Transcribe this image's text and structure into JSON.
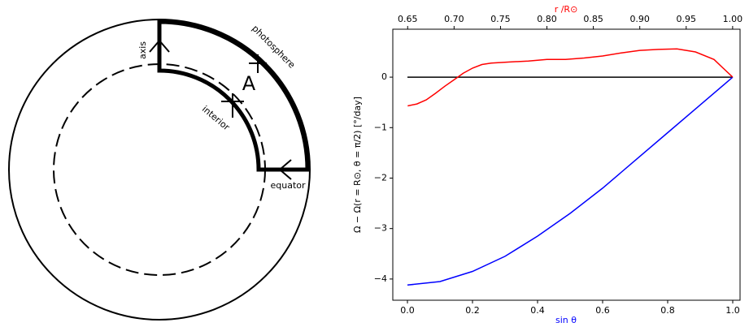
{
  "diagram": {
    "axis": "axis",
    "photosphere": "photosphere",
    "point": "A",
    "interior": "interior",
    "equator": "equator"
  },
  "chart_data": {
    "type": "line",
    "xlabel": "sin θ",
    "x2label": "r /R⊙",
    "ylabel": "Ω − Ω(r = R⊙, θ = π/2) [°/day]",
    "xlabel_color": "#0000ff",
    "x2label_color": "#ff0000",
    "xlim": [
      -0.045,
      1.0225
    ],
    "xticks": [
      {
        "value": 0,
        "label": "0.0"
      },
      {
        "value": 0.2,
        "label": "0.2"
      },
      {
        "value": 0.4,
        "label": "0.4"
      },
      {
        "value": 0.6,
        "label": "0.6"
      },
      {
        "value": 0.8,
        "label": "0.8"
      },
      {
        "value": 1,
        "label": "1.0"
      }
    ],
    "x2lim": [
      0.634,
      1.008
    ],
    "x2ticks": [
      {
        "value": 0.65,
        "label": "0.65"
      },
      {
        "value": 0.7,
        "label": "0.70"
      },
      {
        "value": 0.75,
        "label": "0.75"
      },
      {
        "value": 0.8,
        "label": "0.80"
      },
      {
        "value": 0.85,
        "label": "0.85"
      },
      {
        "value": 0.9,
        "label": "0.90"
      },
      {
        "value": 0.95,
        "label": "0.95"
      },
      {
        "value": 1,
        "label": "1.00"
      }
    ],
    "ylim": [
      -4.42,
      0.95
    ],
    "yticks": [
      {
        "value": -4,
        "label": "−4"
      },
      {
        "value": -3,
        "label": "−3"
      },
      {
        "value": -2,
        "label": "−2"
      },
      {
        "value": -1,
        "label": "−1"
      },
      0
    ],
    "series": [
      {
        "color": "#000000",
        "x": [
          0,
          1
        ],
        "values": [
          0,
          0
        ]
      },
      {
        "color": "#0000ff",
        "x": [
          0,
          0.1,
          0.2,
          0.3,
          0.4,
          0.5,
          0.6,
          0.7,
          0.8,
          0.9,
          1.0
        ],
        "values": [
          -4.12,
          -4.05,
          -3.85,
          -3.55,
          -3.15,
          -2.7,
          -2.2,
          -1.65,
          -1.1,
          -0.55,
          0
        ]
      },
      {
        "color": "#ff0000",
        "axis": "x2",
        "x": [
          0.65,
          0.66,
          0.67,
          0.68,
          0.69,
          0.7,
          0.71,
          0.72,
          0.73,
          0.74,
          0.76,
          0.78,
          0.8,
          0.82,
          0.84,
          0.86,
          0.88,
          0.9,
          0.92,
          0.94,
          0.96,
          0.98,
          1.0
        ],
        "values": [
          -0.57,
          -0.53,
          -0.45,
          -0.32,
          -0.18,
          -0.05,
          0.08,
          0.18,
          0.25,
          0.28,
          0.3,
          0.32,
          0.35,
          0.35,
          0.38,
          0.42,
          0.48,
          0.53,
          0.55,
          0.56,
          0.5,
          0.35,
          0
        ]
      }
    ]
  }
}
